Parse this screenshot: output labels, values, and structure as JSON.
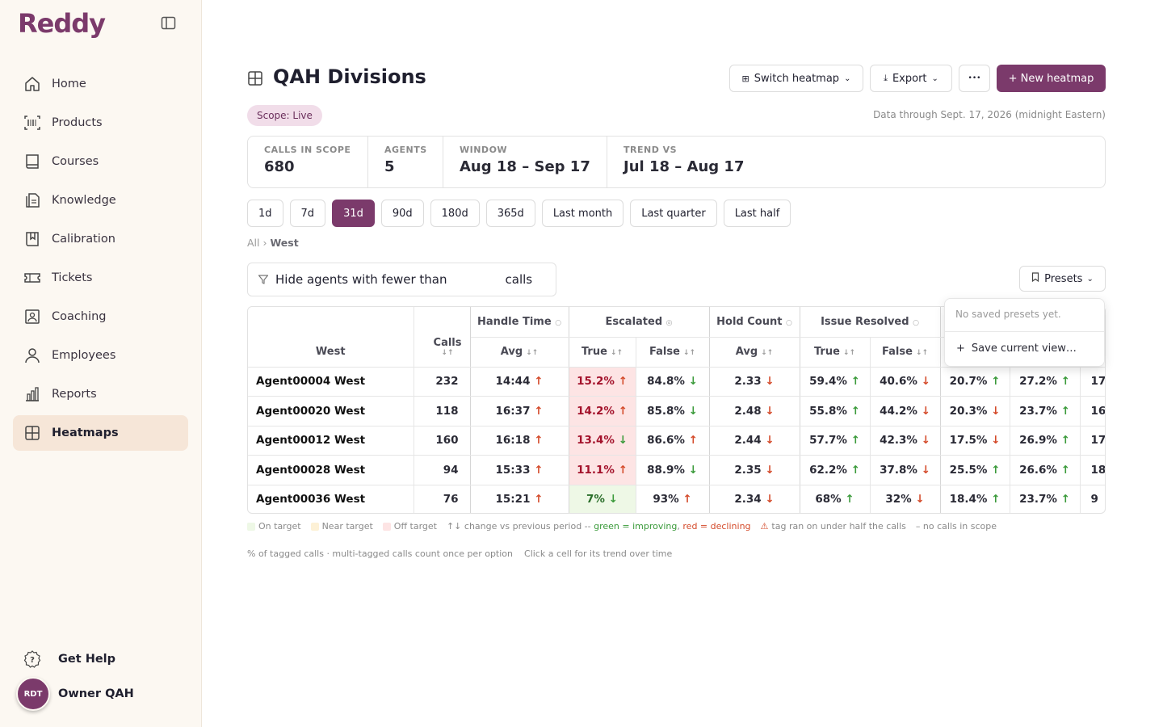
{
  "app": {
    "logo": "Reddy"
  },
  "sidebar": {
    "items": [
      {
        "label": "Home",
        "icon": "home-icon"
      },
      {
        "label": "Products",
        "icon": "barcode-icon"
      },
      {
        "label": "Courses",
        "icon": "book-icon"
      },
      {
        "label": "Knowledge",
        "icon": "document-icon"
      },
      {
        "label": "Calibration",
        "icon": "bookmark-book-icon"
      },
      {
        "label": "Tickets",
        "icon": "ticket-icon"
      },
      {
        "label": "Coaching",
        "icon": "coaching-icon"
      },
      {
        "label": "Employees",
        "icon": "person-icon"
      },
      {
        "label": "Reports",
        "icon": "bar-chart-icon"
      },
      {
        "label": "Heatmaps",
        "icon": "grid-icon"
      }
    ],
    "active": "Heatmaps",
    "help_label": "Get Help",
    "user_initials": "RDT",
    "user_name": "Owner QAH"
  },
  "header": {
    "title": "QAH Divisions",
    "switch_label": "Switch heatmap",
    "export_label": "Export",
    "more_label": "•••",
    "new_label": "+ New heatmap"
  },
  "scope_badge": "Scope: Live",
  "data_through": "Data through Sept. 17, 2026 (midnight Eastern)",
  "stats": [
    {
      "label": "CALLS IN SCOPE",
      "value": "680"
    },
    {
      "label": "AGENTS",
      "value": "5"
    },
    {
      "label": "WINDOW",
      "value": "Aug 18 – Sep 17"
    },
    {
      "label": "TREND VS",
      "value": "Jul 18 – Aug 17"
    }
  ],
  "ranges": [
    "1d",
    "7d",
    "31d",
    "90d",
    "180d",
    "365d",
    "Last month",
    "Last quarter",
    "Last half"
  ],
  "active_range": "31d",
  "breadcrumb": {
    "root": "All",
    "sep": "›",
    "current": "West"
  },
  "filter": {
    "prefix": "Hide agents with fewer than",
    "suffix": "calls",
    "value": ""
  },
  "presets": {
    "label": "Presets",
    "empty": "No saved presets yet.",
    "save": "Save current view…"
  },
  "table": {
    "corner": "West",
    "calls_header": "Calls",
    "groups": [
      "Handle Time",
      "Escalated",
      "Hold Count",
      "Issue Resolved"
    ],
    "subheaders": {
      "avg": "Avg",
      "true": "True",
      "false": "False"
    },
    "rows": [
      {
        "agent": "Agent00004 West",
        "calls": "232",
        "handle": "14:44",
        "esc_true": "15.2%",
        "esc_false": "84.8%",
        "hold": "2.33",
        "res_true": "59.4%",
        "res_false": "40.6%",
        "x1": "20.7%",
        "x2": "27.2%",
        "x3": "17"
      },
      {
        "agent": "Agent00020 West",
        "calls": "118",
        "handle": "16:37",
        "esc_true": "14.2%",
        "esc_false": "85.8%",
        "hold": "2.48",
        "res_true": "55.8%",
        "res_false": "44.2%",
        "x1": "20.3%",
        "x2": "23.7%",
        "x3": "16"
      },
      {
        "agent": "Agent00012 West",
        "calls": "160",
        "handle": "16:18",
        "esc_true": "13.4%",
        "esc_false": "86.6%",
        "hold": "2.44",
        "res_true": "57.7%",
        "res_false": "42.3%",
        "x1": "17.5%",
        "x2": "26.9%",
        "x3": "17"
      },
      {
        "agent": "Agent00028 West",
        "calls": "94",
        "handle": "15:33",
        "esc_true": "11.1%",
        "esc_false": "88.9%",
        "hold": "2.35",
        "res_true": "62.2%",
        "res_false": "37.8%",
        "x1": "25.5%",
        "x2": "26.6%",
        "x3": "18"
      },
      {
        "agent": "Agent00036 West",
        "calls": "76",
        "handle": "15:21",
        "esc_true": "7%",
        "esc_false": "93%",
        "hold": "2.34",
        "res_true": "68%",
        "res_false": "32%",
        "x1": "18.4%",
        "x2": "23.7%",
        "x3": "9"
      }
    ]
  },
  "legend": {
    "on": "On target",
    "near": "Near target",
    "off": "Off target",
    "arrows": "↑↓ change vs previous period --",
    "green": "green = improving",
    "comma": ",",
    "red": "red = declining",
    "tag": "tag ran on under half the calls",
    "dash": "– no calls in scope",
    "note1": "% of tagged calls · multi-tagged calls count once per option",
    "note2": "Click a cell for its trend over time"
  },
  "colors": {
    "brand": "#7b3a6b",
    "on_target": "#eef8e6",
    "near_target": "#fdf1d6",
    "off_target": "#fde4e4"
  }
}
